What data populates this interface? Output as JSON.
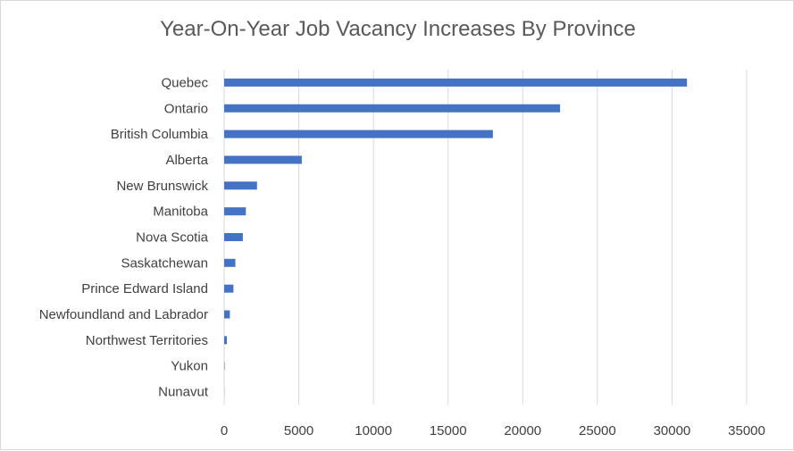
{
  "chart_data": {
    "type": "bar",
    "orientation": "horizontal",
    "title": "Year-On-Year Job Vacancy Increases By Province",
    "xlabel": "",
    "ylabel": "",
    "categories": [
      "Quebec",
      "Ontario",
      "British Columbia",
      "Alberta",
      "New Brunswick",
      "Manitoba",
      "Nova Scotia",
      "Saskatchewan",
      "Prince Edward Island",
      "Newfoundland and Labrador",
      "Northwest Territories",
      "Yukon",
      "Nunavut"
    ],
    "values": [
      31000,
      22500,
      18000,
      5200,
      2200,
      1450,
      1250,
      750,
      620,
      380,
      180,
      30,
      10
    ],
    "xlim": [
      0,
      35000
    ],
    "xticks": [
      "0",
      "5000",
      "10000",
      "15000",
      "20000",
      "25000",
      "30000",
      "35000"
    ],
    "grid": "vertical",
    "legend": "none",
    "bar_color": "#4472C4"
  }
}
